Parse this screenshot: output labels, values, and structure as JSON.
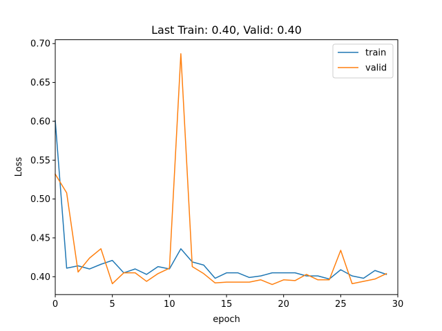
{
  "chart_data": {
    "type": "line",
    "title": "Last Train: 0.40, Valid: 0.40",
    "xlabel": "epoch",
    "ylabel": "Loss",
    "xlim": [
      0,
      30
    ],
    "ylim": [
      0.377,
      0.705
    ],
    "xticks": [
      0,
      5,
      10,
      15,
      20,
      25,
      30
    ],
    "xtick_labels": [
      "0",
      "5",
      "10",
      "15",
      "20",
      "25",
      "30"
    ],
    "yticks": [
      0.4,
      0.45,
      0.5,
      0.55,
      0.6,
      0.65,
      0.7
    ],
    "ytick_labels": [
      "0.40",
      "0.45",
      "0.50",
      "0.55",
      "0.60",
      "0.65",
      "0.70"
    ],
    "grid": false,
    "legend_position": "top-right",
    "x": [
      0,
      1,
      2,
      3,
      4,
      5,
      6,
      7,
      8,
      9,
      10,
      11,
      12,
      13,
      14,
      15,
      16,
      17,
      18,
      19,
      20,
      21,
      22,
      23,
      24,
      25,
      26,
      27,
      28,
      29
    ],
    "series": [
      {
        "name": "train",
        "color": "#1f77b4",
        "values": [
          0.601,
          0.411,
          0.414,
          0.41,
          0.416,
          0.421,
          0.405,
          0.41,
          0.403,
          0.413,
          0.41,
          0.436,
          0.419,
          0.415,
          0.398,
          0.405,
          0.405,
          0.399,
          0.401,
          0.405,
          0.405,
          0.405,
          0.401,
          0.401,
          0.397,
          0.409,
          0.401,
          0.398,
          0.408,
          0.403
        ]
      },
      {
        "name": "valid",
        "color": "#ff7f0e",
        "values": [
          0.532,
          0.508,
          0.406,
          0.424,
          0.436,
          0.391,
          0.405,
          0.405,
          0.394,
          0.404,
          0.411,
          0.687,
          0.413,
          0.404,
          0.392,
          0.393,
          0.393,
          0.393,
          0.396,
          0.39,
          0.396,
          0.395,
          0.403,
          0.396,
          0.396,
          0.434,
          0.391,
          0.394,
          0.397,
          0.404
        ]
      }
    ]
  }
}
